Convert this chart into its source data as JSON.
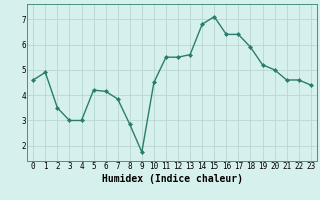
{
  "x": [
    0,
    1,
    2,
    3,
    4,
    5,
    6,
    7,
    8,
    9,
    10,
    11,
    12,
    13,
    14,
    15,
    16,
    17,
    18,
    19,
    20,
    21,
    22,
    23
  ],
  "y": [
    4.6,
    4.9,
    3.5,
    3.0,
    3.0,
    4.2,
    4.15,
    3.85,
    2.85,
    1.75,
    4.5,
    5.5,
    5.5,
    5.6,
    6.8,
    7.1,
    6.4,
    6.4,
    5.9,
    5.2,
    5.0,
    4.6,
    4.6,
    4.4
  ],
  "line_color": "#2a7d6e",
  "marker": "D",
  "markersize": 2.0,
  "linewidth": 1.0,
  "xlabel": "Humidex (Indice chaleur)",
  "xlim": [
    -0.5,
    23.5
  ],
  "ylim": [
    1.4,
    7.6
  ],
  "yticks": [
    2,
    3,
    4,
    5,
    6,
    7
  ],
  "xticks": [
    0,
    1,
    2,
    3,
    4,
    5,
    6,
    7,
    8,
    9,
    10,
    11,
    12,
    13,
    14,
    15,
    16,
    17,
    18,
    19,
    20,
    21,
    22,
    23
  ],
  "bg_color": "#d6f0ed",
  "grid_color": "#b8d8d4",
  "tick_fontsize": 5.5,
  "xlabel_fontsize": 7.0
}
